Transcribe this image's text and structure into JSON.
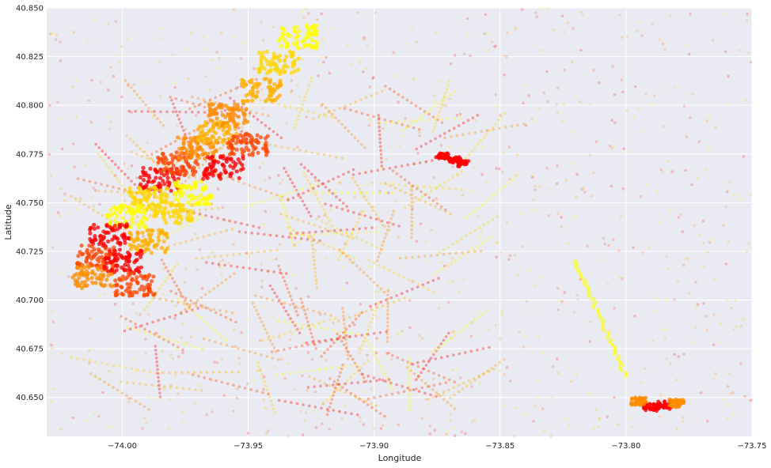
{
  "chart_data": {
    "type": "scatter",
    "title": "",
    "xlabel": "Longitude",
    "ylabel": "Latitude",
    "xlim": [
      -74.03,
      -73.75
    ],
    "ylim": [
      40.63,
      40.85
    ],
    "x_ticks": [
      -74.0,
      -73.95,
      -73.9,
      -73.85,
      -73.8,
      -73.75
    ],
    "x_tick_labels": [
      "−74.00",
      "−73.95",
      "−73.90",
      "−73.85",
      "−73.80",
      "−73.75"
    ],
    "y_ticks": [
      40.65,
      40.675,
      40.7,
      40.725,
      40.75,
      40.775,
      40.8,
      40.825,
      40.85
    ],
    "y_tick_labels": [
      "40.650",
      "40.675",
      "40.700",
      "40.725",
      "40.750",
      "40.775",
      "40.800",
      "40.825",
      "40.850"
    ],
    "grid": true,
    "legend": "none",
    "colors": {
      "background": "#eaeaf2",
      "grid": "#ffffff",
      "palette": [
        "#ff0000",
        "#ff4500",
        "#ff8c00",
        "#ffb000",
        "#ffd700",
        "#ffff00"
      ]
    },
    "series": [
      {
        "kind": "dense-clusters",
        "points": [
          [
            -73.985,
            40.762
          ],
          [
            -73.978,
            40.77
          ],
          [
            -73.97,
            40.778
          ],
          [
            -73.962,
            40.786
          ],
          [
            -73.99,
            40.752
          ],
          [
            -73.998,
            40.743
          ],
          [
            -74.005,
            40.733
          ],
          [
            -74.01,
            40.722
          ],
          [
            -74.012,
            40.712
          ],
          [
            -73.99,
            40.73
          ],
          [
            -73.98,
            40.745
          ],
          [
            -73.972,
            40.755
          ],
          [
            -73.96,
            40.768
          ],
          [
            -73.95,
            40.78
          ],
          [
            -73.958,
            40.795
          ],
          [
            -73.945,
            40.808
          ],
          [
            -73.938,
            40.822
          ],
          [
            -73.93,
            40.835
          ],
          [
            -74.0,
            40.72
          ],
          [
            -73.995,
            40.708
          ]
        ]
      },
      {
        "kind": "jfk-airport",
        "points": [
          [
            -73.79,
            40.645
          ],
          [
            -73.785,
            40.646
          ],
          [
            -73.78,
            40.647
          ],
          [
            -73.795,
            40.648
          ]
        ]
      },
      {
        "kind": "laguardia-airport",
        "points": [
          [
            -73.873,
            40.774
          ],
          [
            -73.868,
            40.772
          ],
          [
            -73.865,
            40.77
          ]
        ]
      }
    ]
  }
}
